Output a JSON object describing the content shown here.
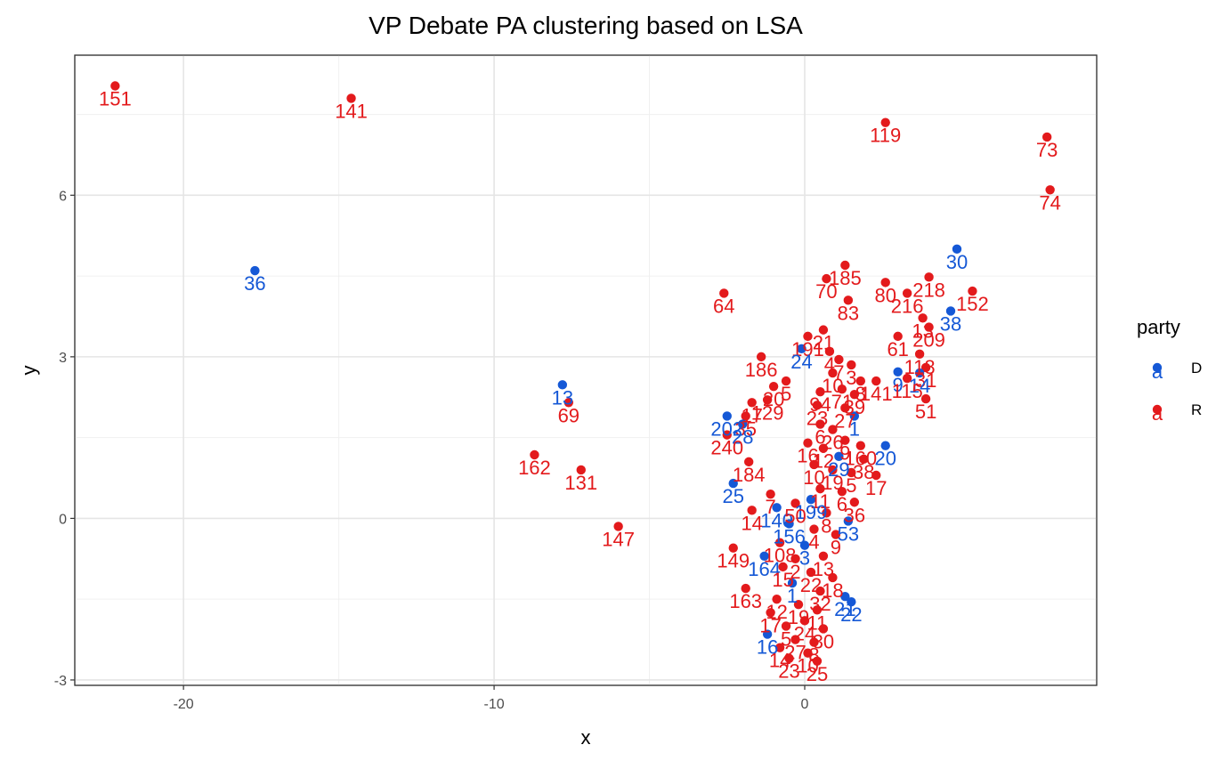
{
  "chart_data": {
    "type": "scatter",
    "title": "VP Debate PA clustering based on LSA",
    "xlabel": "x",
    "ylabel": "y",
    "xlim": [
      -23.5,
      9.4
    ],
    "ylim": [
      -3.1,
      8.6
    ],
    "x_ticks": [
      -20,
      -10,
      0
    ],
    "x_tick_labels": [
      "-20",
      "-10",
      "0"
    ],
    "y_ticks": [
      -3,
      0,
      3,
      6
    ],
    "y_tick_labels": [
      "-3",
      "0",
      "3",
      "6"
    ],
    "grid": true,
    "legend": {
      "title": "party",
      "position": "right",
      "entries": [
        {
          "key": "D",
          "label": "D",
          "color": "#1558d6"
        },
        {
          "key": "R",
          "label": "R",
          "color": "#e31a1c"
        }
      ],
      "glyph": "a"
    },
    "colors": {
      "D": "#1558d6",
      "R": "#e31a1c"
    },
    "points": [
      {
        "x": -22.2,
        "y": 8.03,
        "label": "151",
        "party": "R"
      },
      {
        "x": -14.6,
        "y": 7.8,
        "label": "141",
        "party": "R"
      },
      {
        "x": -17.7,
        "y": 4.6,
        "label": "36",
        "party": "D"
      },
      {
        "x": 2.6,
        "y": 7.35,
        "label": "119",
        "party": "R"
      },
      {
        "x": 7.8,
        "y": 7.08,
        "label": "73",
        "party": "R"
      },
      {
        "x": 7.9,
        "y": 6.1,
        "label": "74",
        "party": "R"
      },
      {
        "x": 4.9,
        "y": 5.0,
        "label": "30",
        "party": "D"
      },
      {
        "x": 1.3,
        "y": 4.7,
        "label": "185",
        "party": "R"
      },
      {
        "x": 0.7,
        "y": 4.45,
        "label": "70",
        "party": "R"
      },
      {
        "x": 2.6,
        "y": 4.38,
        "label": "80",
        "party": "R"
      },
      {
        "x": 4.0,
        "y": 4.48,
        "label": "218",
        "party": "R"
      },
      {
        "x": 5.4,
        "y": 4.22,
        "label": "152",
        "party": "R"
      },
      {
        "x": 3.3,
        "y": 4.18,
        "label": "216",
        "party": "R"
      },
      {
        "x": 1.4,
        "y": 4.05,
        "label": "83",
        "party": "R"
      },
      {
        "x": -2.6,
        "y": 4.18,
        "label": "64",
        "party": "R"
      },
      {
        "x": 4.7,
        "y": 3.85,
        "label": "38",
        "party": "D"
      },
      {
        "x": 3.8,
        "y": 3.72,
        "label": "13",
        "party": "R"
      },
      {
        "x": 4.0,
        "y": 3.55,
        "label": "209",
        "party": "R"
      },
      {
        "x": 3.0,
        "y": 3.38,
        "label": "61",
        "party": "R"
      },
      {
        "x": 0.1,
        "y": 3.38,
        "label": "191",
        "party": "R"
      },
      {
        "x": 0.6,
        "y": 3.5,
        "label": "21",
        "party": "R"
      },
      {
        "x": -0.1,
        "y": 3.15,
        "label": "24",
        "party": "D"
      },
      {
        "x": 0.8,
        "y": 3.1,
        "label": "4",
        "party": "R"
      },
      {
        "x": 3.7,
        "y": 3.05,
        "label": "118",
        "party": "R"
      },
      {
        "x": 3.9,
        "y": 2.8,
        "label": "31",
        "party": "R"
      },
      {
        "x": -1.4,
        "y": 3.0,
        "label": "186",
        "party": "R"
      },
      {
        "x": 1.1,
        "y": 2.95,
        "label": "7",
        "party": "R"
      },
      {
        "x": 1.5,
        "y": 2.85,
        "label": "3",
        "party": "R"
      },
      {
        "x": 0.9,
        "y": 2.7,
        "label": "10",
        "party": "R"
      },
      {
        "x": 1.8,
        "y": 2.55,
        "label": "8",
        "party": "R"
      },
      {
        "x": 3.0,
        "y": 2.72,
        "label": "9",
        "party": "D"
      },
      {
        "x": 3.7,
        "y": 2.7,
        "label": "14",
        "party": "D"
      },
      {
        "x": 2.3,
        "y": 2.55,
        "label": "141",
        "party": "R"
      },
      {
        "x": 3.3,
        "y": 2.6,
        "label": "115",
        "party": "R"
      },
      {
        "x": -7.8,
        "y": 2.48,
        "label": "13",
        "party": "D"
      },
      {
        "x": -7.6,
        "y": 2.15,
        "label": "69",
        "party": "R"
      },
      {
        "x": -1.0,
        "y": 2.45,
        "label": "20",
        "party": "R"
      },
      {
        "x": -0.6,
        "y": 2.55,
        "label": "5",
        "party": "R"
      },
      {
        "x": 0.5,
        "y": 2.35,
        "label": "94",
        "party": "R"
      },
      {
        "x": 1.2,
        "y": 2.4,
        "label": "71",
        "party": "R"
      },
      {
        "x": 1.6,
        "y": 2.3,
        "label": "39",
        "party": "R"
      },
      {
        "x": 3.9,
        "y": 2.22,
        "label": "51",
        "party": "R"
      },
      {
        "x": -1.7,
        "y": 2.15,
        "label": "17",
        "party": "R"
      },
      {
        "x": -1.2,
        "y": 2.2,
        "label": "129",
        "party": "R"
      },
      {
        "x": -1.9,
        "y": 1.9,
        "label": "35",
        "party": "R"
      },
      {
        "x": 0.4,
        "y": 2.1,
        "label": "23",
        "party": "R"
      },
      {
        "x": 1.3,
        "y": 2.05,
        "label": "27",
        "party": "R"
      },
      {
        "x": -2.5,
        "y": 1.9,
        "label": "202",
        "party": "D"
      },
      {
        "x": -2.0,
        "y": 1.75,
        "label": "28",
        "party": "D"
      },
      {
        "x": 1.6,
        "y": 1.9,
        "label": "1",
        "party": "D"
      },
      {
        "x": 0.5,
        "y": 1.75,
        "label": "6",
        "party": "R"
      },
      {
        "x": 0.9,
        "y": 1.65,
        "label": "26",
        "party": "R"
      },
      {
        "x": -2.5,
        "y": 1.55,
        "label": "240",
        "party": "R"
      },
      {
        "x": 1.3,
        "y": 1.45,
        "label": "9",
        "party": "R"
      },
      {
        "x": 1.8,
        "y": 1.35,
        "label": "160",
        "party": "R"
      },
      {
        "x": 2.6,
        "y": 1.35,
        "label": "20",
        "party": "D"
      },
      {
        "x": 0.1,
        "y": 1.4,
        "label": "16",
        "party": "R"
      },
      {
        "x": 0.6,
        "y": 1.3,
        "label": "12",
        "party": "R"
      },
      {
        "x": 1.1,
        "y": 1.15,
        "label": "29",
        "party": "D"
      },
      {
        "x": 1.9,
        "y": 1.1,
        "label": "38",
        "party": "R"
      },
      {
        "x": -8.7,
        "y": 1.18,
        "label": "162",
        "party": "R"
      },
      {
        "x": -7.2,
        "y": 0.9,
        "label": "131",
        "party": "R"
      },
      {
        "x": -1.8,
        "y": 1.05,
        "label": "184",
        "party": "R"
      },
      {
        "x": 0.3,
        "y": 1.0,
        "label": "10",
        "party": "R"
      },
      {
        "x": 0.9,
        "y": 0.9,
        "label": "19",
        "party": "R"
      },
      {
        "x": 1.5,
        "y": 0.85,
        "label": "5",
        "party": "R"
      },
      {
        "x": 2.3,
        "y": 0.8,
        "label": "17",
        "party": "R"
      },
      {
        "x": -2.3,
        "y": 0.65,
        "label": "25",
        "party": "D"
      },
      {
        "x": 0.5,
        "y": 0.55,
        "label": "11",
        "party": "R"
      },
      {
        "x": 1.2,
        "y": 0.5,
        "label": "6",
        "party": "R"
      },
      {
        "x": -1.1,
        "y": 0.45,
        "label": "7",
        "party": "R"
      },
      {
        "x": 0.2,
        "y": 0.35,
        "label": "199",
        "party": "D"
      },
      {
        "x": 1.6,
        "y": 0.3,
        "label": "36",
        "party": "R"
      },
      {
        "x": -0.9,
        "y": 0.2,
        "label": "140",
        "party": "D"
      },
      {
        "x": -1.7,
        "y": 0.15,
        "label": "14",
        "party": "R"
      },
      {
        "x": -0.3,
        "y": 0.28,
        "label": "50",
        "party": "R"
      },
      {
        "x": 0.7,
        "y": 0.1,
        "label": "8",
        "party": "R"
      },
      {
        "x": 1.4,
        "y": -0.05,
        "label": "53",
        "party": "D"
      },
      {
        "x": -0.5,
        "y": -0.1,
        "label": "156",
        "party": "D"
      },
      {
        "x": 0.3,
        "y": -0.2,
        "label": "4",
        "party": "R"
      },
      {
        "x": 1.0,
        "y": -0.3,
        "label": "9",
        "party": "R"
      },
      {
        "x": -6.0,
        "y": -0.15,
        "label": "147",
        "party": "R"
      },
      {
        "x": -0.8,
        "y": -0.45,
        "label": "108",
        "party": "R"
      },
      {
        "x": 0.0,
        "y": -0.5,
        "label": "3",
        "party": "D"
      },
      {
        "x": -2.3,
        "y": -0.55,
        "label": "149",
        "party": "R"
      },
      {
        "x": -0.3,
        "y": -0.75,
        "label": "2",
        "party": "R"
      },
      {
        "x": 0.6,
        "y": -0.7,
        "label": "13",
        "party": "R"
      },
      {
        "x": -1.3,
        "y": -0.7,
        "label": "164",
        "party": "D"
      },
      {
        "x": -0.7,
        "y": -0.9,
        "label": "15",
        "party": "R"
      },
      {
        "x": 0.2,
        "y": -1.0,
        "label": "22",
        "party": "R"
      },
      {
        "x": 0.9,
        "y": -1.1,
        "label": "18",
        "party": "R"
      },
      {
        "x": -0.4,
        "y": -1.2,
        "label": "1",
        "party": "D"
      },
      {
        "x": -1.9,
        "y": -1.3,
        "label": "163",
        "party": "R"
      },
      {
        "x": 0.5,
        "y": -1.35,
        "label": "32",
        "party": "R"
      },
      {
        "x": 1.3,
        "y": -1.45,
        "label": "21",
        "party": "D"
      },
      {
        "x": 1.5,
        "y": -1.55,
        "label": "22",
        "party": "D"
      },
      {
        "x": -0.9,
        "y": -1.5,
        "label": "12",
        "party": "R"
      },
      {
        "x": -0.2,
        "y": -1.6,
        "label": "19",
        "party": "R"
      },
      {
        "x": 0.4,
        "y": -1.7,
        "label": "11",
        "party": "R"
      },
      {
        "x": -1.1,
        "y": -1.75,
        "label": "17",
        "party": "R"
      },
      {
        "x": 0.0,
        "y": -1.9,
        "label": "24",
        "party": "R"
      },
      {
        "x": -0.6,
        "y": -2.0,
        "label": "5",
        "party": "R"
      },
      {
        "x": 0.6,
        "y": -2.05,
        "label": "30",
        "party": "R"
      },
      {
        "x": -1.2,
        "y": -2.15,
        "label": "16",
        "party": "D"
      },
      {
        "x": -0.3,
        "y": -2.25,
        "label": "27",
        "party": "R"
      },
      {
        "x": 0.3,
        "y": -2.3,
        "label": "8",
        "party": "R"
      },
      {
        "x": -0.8,
        "y": -2.4,
        "label": "14",
        "party": "R"
      },
      {
        "x": 0.1,
        "y": -2.5,
        "label": "10",
        "party": "R"
      },
      {
        "x": -0.5,
        "y": -2.6,
        "label": "23",
        "party": "R"
      },
      {
        "x": 0.4,
        "y": -2.65,
        "label": "25",
        "party": "R"
      }
    ]
  }
}
